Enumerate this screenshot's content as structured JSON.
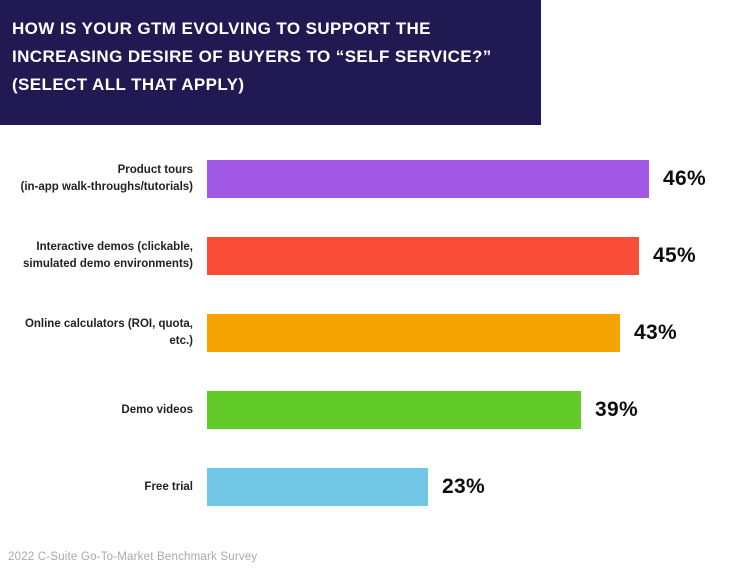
{
  "header": {
    "title_lines": [
      "HOW IS YOUR GTM EVOLVING TO SUPPORT THE",
      "INCREASING DESIRE OF BUYERS TO “SELF SERVICE?”",
      "(SELECT ALL THAT APPLY)"
    ],
    "bg_color": "#211a52",
    "text_color": "#ffffff"
  },
  "chart_data": {
    "type": "bar",
    "orientation": "horizontal",
    "title": "HOW IS YOUR GTM EVOLVING TO SUPPORT THE INCREASING DESIRE OF BUYERS TO “SELF SERVICE?” (SELECT ALL THAT APPLY)",
    "categories": [
      "Product tours (in-app walk-throughs/tutorials)",
      "Interactive demos (clickable, simulated demo environments)",
      "Online calculators (ROI, quota, etc.)",
      "Demo videos",
      "Free trial"
    ],
    "label_lines": [
      [
        "Product tours",
        "(in-app walk-throughs/tutorials)"
      ],
      [
        "Interactive demos (clickable,",
        "simulated demo environments)"
      ],
      [
        "Online calculators (ROI, quota, etc.)"
      ],
      [
        "Demo videos"
      ],
      [
        "Free trial"
      ]
    ],
    "values": [
      46,
      45,
      43,
      39,
      23
    ],
    "value_labels": [
      "46%",
      "45%",
      "43%",
      "39%",
      "23%"
    ],
    "bar_colors": [
      "#a159e6",
      "#f94d37",
      "#f6a402",
      "#62cb2a",
      "#72c7e6"
    ],
    "xlim": [
      0,
      50
    ],
    "grid": false,
    "legend": "none"
  },
  "footer": {
    "source": "2022 C-Suite Go-To-Market Benchmark Survey"
  }
}
